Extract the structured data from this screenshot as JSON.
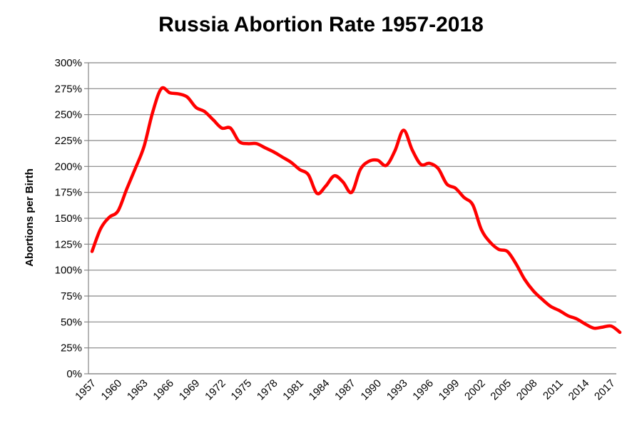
{
  "chart_data": {
    "type": "line",
    "title": "Russia Abortion Rate 1957-2018",
    "xlabel": "",
    "ylabel": "Abortions per Birth",
    "xlim": [
      1957,
      2018
    ],
    "ylim": [
      0,
      300
    ],
    "y_unit": "%",
    "grid": true,
    "legend": "none",
    "x_ticks": [
      1957,
      1960,
      1963,
      1966,
      1969,
      1972,
      1975,
      1978,
      1981,
      1984,
      1987,
      1990,
      1993,
      1996,
      1999,
      2002,
      2005,
      2008,
      2011,
      2014,
      2017
    ],
    "y_ticks": [
      "0%",
      "25%",
      "50%",
      "75%",
      "100%",
      "125%",
      "150%",
      "175%",
      "200%",
      "225%",
      "250%",
      "275%",
      "300%"
    ],
    "line_color": "#ff0000",
    "series": [
      {
        "x": [
          1957,
          1958,
          1959,
          1960,
          1961,
          1962,
          1963,
          1964,
          1965,
          1966,
          1967,
          1968,
          1969,
          1970,
          1971,
          1972,
          1973,
          1974,
          1975,
          1976,
          1977,
          1978,
          1979,
          1980,
          1981,
          1982,
          1983,
          1984,
          1985,
          1986,
          1987,
          1988,
          1989,
          1990,
          1991,
          1992,
          1993,
          1994,
          1995,
          1996,
          1997,
          1998,
          1999,
          2000,
          2001,
          2002,
          2003,
          2004,
          2005,
          2006,
          2007,
          2008,
          2009,
          2010,
          2011,
          2012,
          2013,
          2014,
          2015,
          2016,
          2017,
          2018
        ],
        "values": [
          118,
          140,
          151,
          157,
          178,
          198,
          219,
          252,
          275,
          271,
          270,
          267,
          257,
          253,
          245,
          237,
          237,
          224,
          222,
          222,
          218,
          214,
          209,
          204,
          197,
          192,
          174,
          181,
          191,
          185,
          175,
          197,
          205,
          206,
          201,
          215,
          235,
          216,
          202,
          203,
          198,
          183,
          179,
          170,
          163,
          139,
          127,
          120,
          118,
          106,
          91,
          80,
          72,
          65,
          61,
          56,
          53,
          48,
          44,
          45,
          46,
          40
        ]
      }
    ]
  }
}
